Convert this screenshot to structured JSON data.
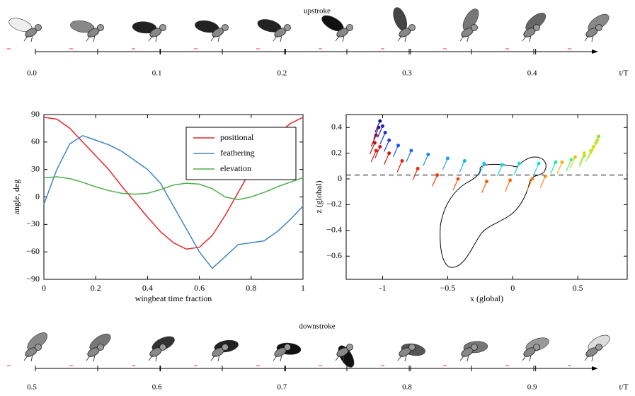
{
  "chart_data": [
    {
      "type": "timeline",
      "title": "upstroke",
      "x_label": "t/T",
      "xlim": [
        0,
        0.45
      ],
      "xticks": [
        {
          "value": 0,
          "label": "0.0"
        },
        0.1,
        0.2,
        0.3,
        0.4
      ]
    },
    {
      "type": "line",
      "x_label": "wingbeat time fraction",
      "y_label": "angle, deg",
      "x": [
        0,
        0.05,
        0.1,
        0.15,
        0.2,
        0.25,
        0.3,
        0.35,
        0.4,
        0.45,
        0.5,
        0.55,
        0.6,
        0.65,
        0.7,
        0.75,
        0.8,
        0.85,
        0.9,
        0.95,
        1
      ],
      "series": [
        {
          "name": "positional",
          "color": "#e3262b",
          "values": [
            87,
            85,
            75,
            60,
            45,
            30,
            12,
            -5,
            -22,
            -38,
            -50,
            -57,
            -55,
            -42,
            -20,
            5,
            30,
            50,
            68,
            80,
            87
          ]
        },
        {
          "name": "feathering",
          "color": "#3d86c6",
          "values": [
            -8,
            30,
            58,
            67,
            62,
            57,
            50,
            40,
            30,
            15,
            -10,
            -35,
            -60,
            -78,
            -65,
            -52,
            -50,
            -48,
            -38,
            -25,
            -10
          ]
        },
        {
          "name": "elevation",
          "color": "#4daf4a",
          "values": [
            21,
            22,
            20,
            16,
            11,
            7,
            4,
            3,
            4,
            8,
            13,
            15,
            14,
            9,
            0,
            -3,
            0,
            5,
            11,
            16,
            21
          ]
        }
      ],
      "xlim": [
        0,
        1
      ],
      "xticks": [
        0,
        0.2,
        0.4,
        0.6,
        0.8,
        1
      ],
      "ylim": [
        -90,
        90
      ],
      "yticks": [
        {
          "value": -90,
          "label": "−90"
        },
        {
          "value": -60,
          "label": "−60"
        },
        {
          "value": -30,
          "label": "−30"
        },
        0,
        30,
        60,
        90
      ],
      "legend": "upper right"
    },
    {
      "type": "scatter",
      "x_label": "x (global)",
      "y_label": "z (global)",
      "x": [
        -1.05,
        -1.06,
        -1.05,
        -1.03,
        -1.02,
        -1.0,
        -0.98,
        -0.95,
        -0.88,
        -0.78,
        -0.65,
        -0.5,
        -0.37,
        -0.22,
        -0.08,
        0.05,
        0.2,
        0.33,
        0.45,
        0.55,
        0.6,
        0.64,
        0.66,
        0.65,
        0.62,
        0.55,
        0.48,
        0.38,
        0.25,
        0.15,
        -0.02,
        -0.2,
        -0.42,
        -0.58,
        -0.73,
        -0.85,
        -0.95,
        -1.02
      ],
      "y": [
        0.22,
        0.28,
        0.34,
        0.4,
        0.45,
        0.41,
        0.36,
        0.3,
        0.26,
        0.22,
        0.19,
        0.16,
        0.14,
        0.12,
        0.11,
        0.12,
        0.12,
        0.13,
        0.15,
        0.18,
        0.22,
        0.28,
        0.33,
        0.3,
        0.25,
        0.2,
        0.17,
        0.13,
        0.02,
        0.0,
        -0.01,
        -0.02,
        0.0,
        0.03,
        0.08,
        0.14,
        0.2,
        0.25
      ],
      "colors": [
        "#d62020",
        "#c8101a",
        "#a0102a",
        "#5a0a6a",
        "#1010a0",
        "#1a20c8",
        "#1a30d8",
        "#1a40e0",
        "#1a55e8",
        "#1a70f0",
        "#1a8af0",
        "#1aa0f0",
        "#10b8f0",
        "#10c8e8",
        "#10d8e0",
        "#10e0d0",
        "#10e8c0",
        "#20e8a8",
        "#50f090",
        "#80f070",
        "#a0f050",
        "#b0f040",
        "#90e040",
        "#d0e020",
        "#e0e010",
        "#f0d010",
        "#f0c010",
        "#f0b010",
        "#f09010",
        "#f08010",
        "#f07010",
        "#f06010",
        "#f05010",
        "#f04010",
        "#e83010",
        "#e02010",
        "#d81810",
        "#d01010"
      ],
      "hline": 0.03,
      "xlim": [
        -1.28,
        0.88
      ],
      "xticks": [
        -1,
        {
          "value": -0.5,
          "label": "−0.5"
        },
        0,
        0.5
      ],
      "ylim": [
        -0.78,
        0.5
      ],
      "yticks": [
        {
          "value": -0.6,
          "label": "−0.6"
        },
        {
          "value": -0.4,
          "label": "−0.4"
        },
        {
          "value": -0.2,
          "label": "−0.2"
        },
        0,
        0.2,
        0.4
      ]
    },
    {
      "type": "timeline",
      "title": "downstroke",
      "x_label": "t/T",
      "xlim": [
        0.5,
        0.95
      ],
      "xticks": [
        0.5,
        0.6,
        0.7,
        0.8,
        0.9
      ]
    }
  ]
}
